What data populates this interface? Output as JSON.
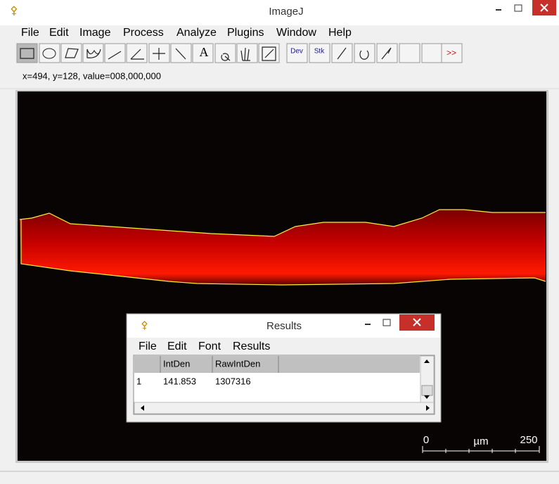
{
  "window": {
    "title": "ImageJ",
    "menu": [
      "File",
      "Edit",
      "Image",
      "Process",
      "Analyze",
      "Plugins",
      "Window",
      "Help"
    ],
    "toolbar": {
      "text_tool": "A",
      "dev": "Dev",
      "stk": "Stk",
      "more": ">>"
    },
    "status": "x=494, y=128, value=008,000,000"
  },
  "image": {
    "scale_bar": {
      "start": "0",
      "unit": "µm",
      "end": "250"
    }
  },
  "results": {
    "title": "Results",
    "menu": [
      "File",
      "Edit",
      "Font",
      "Results"
    ],
    "table": {
      "columns": [
        "IntDen",
        "RawIntDen"
      ],
      "rows": [
        [
          "1",
          "141.853",
          "1307316"
        ]
      ]
    }
  }
}
